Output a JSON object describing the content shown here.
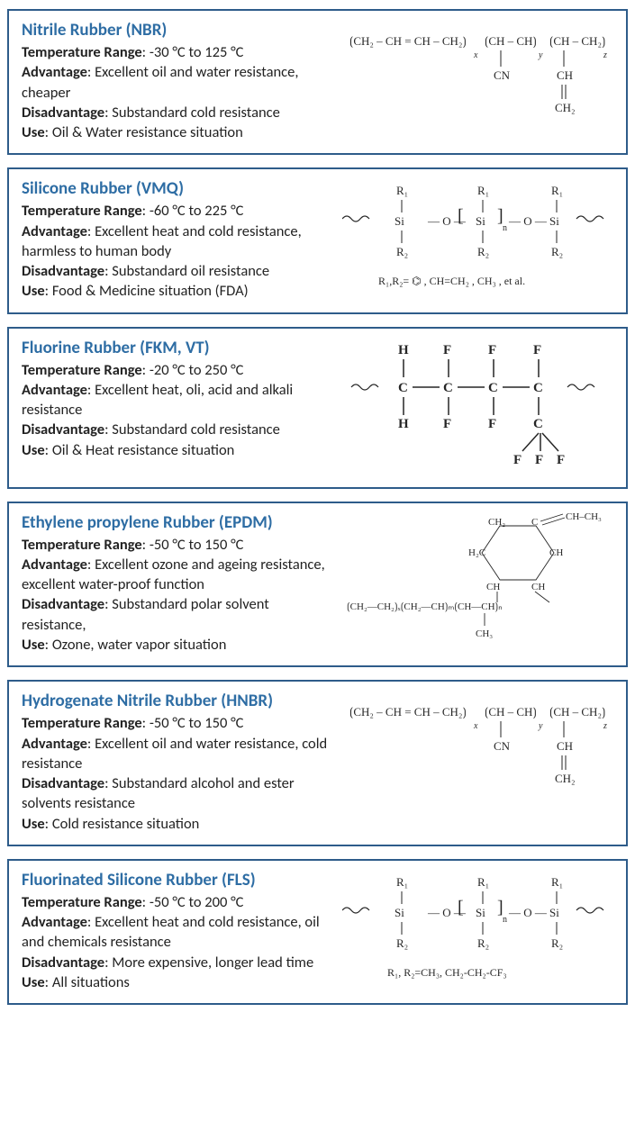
{
  "colors": {
    "border": "#2e5c8a",
    "title": "#2e6da4",
    "text": "#222222",
    "background": "#ffffff"
  },
  "cards": [
    {
      "title": "Nitrile Rubber (NBR)",
      "temp": "-30 °C to 125 °C",
      "advantage": "Excellent oil and water resistance, cheaper",
      "disadvantage": "Substandard cold resistance",
      "use": "Oil & Water resistance situation",
      "formula_text": "⟨CH₂–CH=CH–CH₂⟩ₓ⟨CH–CH⟩ᵧ⟨CH–CH₂⟩_z\n│\nCN   CH\n‖\nCH₂",
      "formula_svg": "nbr"
    },
    {
      "title": "Silicone Rubber (VMQ)",
      "temp": "-60 °C to 225 °C",
      "advantage": "Excellent heat and cold resistance, harmless to human body",
      "disadvantage": "Substandard oil  resistance",
      "use": "Food & Medicine  situation (FDA)",
      "formula_text": "⟿⟨Si–O⟩–⟨Si–O⟩ₙ–⟨Si⟩⟿  \nR₁/R₂ = phenyl, CH=CH₂, CH₃, et al.",
      "formula_svg": "vmq"
    },
    {
      "title": "Fluorine Rubber (FKM, VT)",
      "temp": "-20 °C to 250 °C",
      "advantage": "Excellent heat, oli, acid and alkali resistance",
      "disadvantage": "Substandard cold resistance",
      "use": "Oil & Heat resistance situation",
      "formula_text": "H  F  F  F\n⟿C–C–C–C⟿\nH  F  F  C\n     F F F",
      "formula_svg": "fkm"
    },
    {
      "title": "Ethylene  propylene  Rubber (EPDM)",
      "temp": "-50 °C to 150 °C",
      "advantage": "Excellent ozone and ageing resistance, excellent water-proof function",
      "disadvantage": "Substandard polar solvent resistance,",
      "use": "Ozone, water vapor situation",
      "formula_text": "cyclic EPDM repeat unit\n⟨CH₂–CH₂⟩ₓ⟨CH₂–CH⟩ₘ⟨CH–CH⟩ₙ\nCH₃ / C=CH–CH₃",
      "formula_svg": "epdm"
    },
    {
      "title": "Hydrogenate  Nitrile Rubber (HNBR)",
      "temp": "-50 °C to 150 °C",
      "advantage": "Excellent oil and water resistance, cold resistance",
      "disadvantage": "Substandard alcohol and ester solvents resistance",
      "use": "Cold resistance situation",
      "formula_text": "⟨CH₂–CH=CH–CH₂⟩ₓ⟨CH–CH⟩ᵧ⟨CH–CH₂⟩_z\n│\nCN   CH\n‖\nCH₂",
      "formula_svg": "nbr"
    },
    {
      "title": "Fluorinated  Silicone  Rubber (FLS)",
      "temp": "-50 °C to 200 °C",
      "advantage": "Excellent heat and cold resistance, oil and chemicals resistance",
      "disadvantage": "More expensive, longer lead time",
      "use": "All situations",
      "formula_text": "⟿⟨Si–O⟩–⟨Si–O⟩ₙ–⟨Si⟩⟿\nR₁, R₂=CH₃, CH₂-CH₂-CF₃",
      "formula_svg": "vmq2"
    }
  ],
  "labels": {
    "temp": "Temperature Range",
    "advantage": "Advantage",
    "disadvantage": "Disadvantage",
    "use": "Use"
  }
}
